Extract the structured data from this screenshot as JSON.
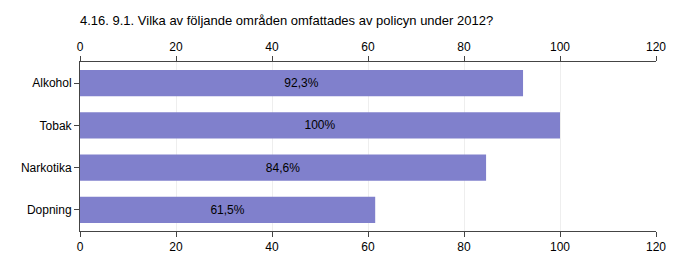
{
  "chart_data": {
    "type": "bar",
    "orientation": "horizontal",
    "title": "4.16. 9.1. Vilka av följande områden omfattades av policyn under 2012?",
    "categories": [
      "Alkohol",
      "Tobak",
      "Narkotika",
      "Dopning"
    ],
    "values": [
      92.3,
      100.0,
      84.6,
      61.5
    ],
    "value_labels": [
      "92,3%",
      "100%",
      "84,6%",
      "61,5%"
    ],
    "data_labels": true,
    "color": "#8080cc",
    "xlim": [
      0,
      120
    ],
    "xticks": [
      0,
      20,
      40,
      60,
      80,
      100,
      120
    ],
    "grid": true
  }
}
